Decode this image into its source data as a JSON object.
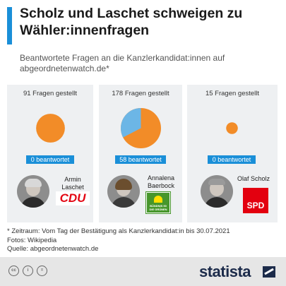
{
  "header": {
    "title": "Scholz und Laschet schweigen zu Wähler:innenfragen",
    "subtitle": "Beantwortete Fragen an die Kanzlerkandidat:innen auf abgeordnetenwatch.de*"
  },
  "colors": {
    "accent": "#1a8fd8",
    "unanswered": "#f28c28",
    "answered": "#6cb6e6",
    "panel": "#eef0f2",
    "cdu": "#e30613",
    "greens": "#46962b",
    "spd": "#e3000f"
  },
  "chart_data": {
    "type": "pie",
    "series": [
      {
        "name": "Armin Laschet",
        "asked": 91,
        "answered": 0,
        "asked_label": "91 Fragen gestellt",
        "answered_label": "0 beantwortet",
        "party": "CDU"
      },
      {
        "name": "Annalena Baerbock",
        "asked": 178,
        "answered": 58,
        "asked_label": "178 Fragen gestellt",
        "answered_label": "58 beantwortet",
        "party": "Bündnis 90 Die Grünen"
      },
      {
        "name": "Olaf Scholz",
        "asked": 15,
        "answered": 0,
        "asked_label": "15 Fragen gestellt",
        "answered_label": "0 beantwortet",
        "party": "SPD"
      }
    ]
  },
  "candidates": [
    {
      "name_line1": "Armin",
      "name_line2": "Laschet",
      "logo_text": "CDU",
      "photo_icon": "person-photo-icon"
    },
    {
      "name_line1": "Annalena",
      "name_line2": "Baerbock",
      "logo_line1": "BÜNDNIS 90",
      "logo_line2": "DIE GRÜNEN",
      "photo_icon": "person-photo-icon"
    },
    {
      "name_line1": "Olaf Scholz",
      "name_line2": "",
      "logo_text": "SPD",
      "photo_icon": "person-photo-icon"
    }
  ],
  "footnotes": {
    "period": "* Zeitraum: Vom Tag der Bestätigung als Kanzlerkandidat:in bis 30.07.2021",
    "photos": "Fotos: Wikipedia",
    "source": "Quelle: abgeordnetenwatch.de"
  },
  "footer": {
    "icons": [
      "cc-icon",
      "by-icon",
      "equals-icon"
    ],
    "icon_glyphs": [
      "cc",
      "i",
      "="
    ],
    "brand": "statista"
  }
}
